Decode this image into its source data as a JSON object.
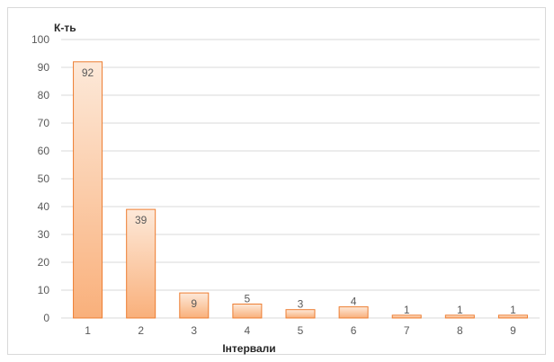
{
  "chart_data": {
    "type": "bar",
    "categories": [
      "1",
      "2",
      "3",
      "4",
      "5",
      "6",
      "7",
      "8",
      "9"
    ],
    "values": [
      92,
      39,
      9,
      5,
      3,
      4,
      1,
      1,
      1
    ],
    "xlabel": "Інтервали",
    "ylabel": "К-ть",
    "ylim": [
      0,
      100
    ],
    "yticks": [
      0,
      10,
      20,
      30,
      40,
      50,
      60,
      70,
      80,
      90,
      100
    ],
    "grid": true,
    "data_labels": true,
    "colors": {
      "bar_top": "#fde9d9",
      "bar_bottom": "#f9b07b",
      "bar_border": "#ed7d31",
      "grid": "#d9d9d9"
    }
  }
}
